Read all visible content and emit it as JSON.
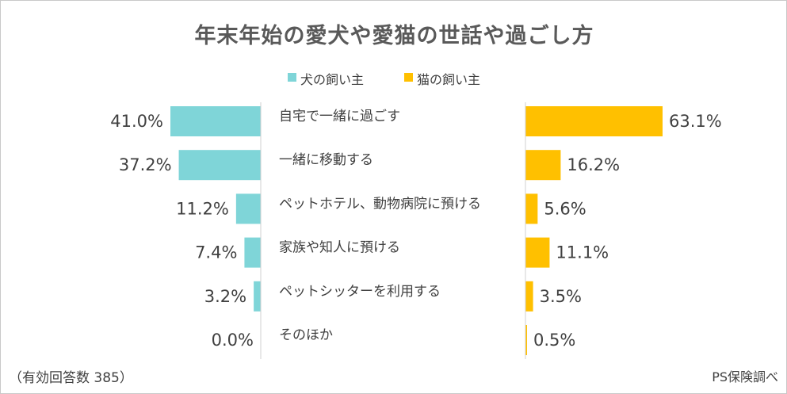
{
  "chart_data": {
    "type": "bar",
    "title": "年末年始の愛犬や愛猫の世話や過ごし方",
    "categories": [
      "自宅で一緒に過ごす",
      "一緒に移動する",
      "ペットホテル、動物病院に預ける",
      "家族や知人に預ける",
      "ペットシッターを利用する",
      "そのほか"
    ],
    "series": [
      {
        "name": "犬の飼い主",
        "values": [
          41.0,
          37.2,
          11.2,
          7.4,
          3.2,
          0.0
        ],
        "labels": [
          "41.0%",
          "37.2%",
          "11.2%",
          "7.4%",
          "3.2%",
          "0.0%"
        ],
        "color": "#7fd5d8"
      },
      {
        "name": "猫の飼い主",
        "values": [
          63.1,
          16.2,
          5.6,
          11.1,
          3.5,
          0.5
        ],
        "labels": [
          "63.1%",
          "16.2%",
          "5.6%",
          "11.1%",
          "3.5%",
          "0.5%"
        ],
        "color": "#ffc000"
      }
    ],
    "unit": "%",
    "legend_position": "top-center",
    "grid": false
  },
  "footnote": "（有効回答数 385）",
  "source": "PS保険調べ"
}
